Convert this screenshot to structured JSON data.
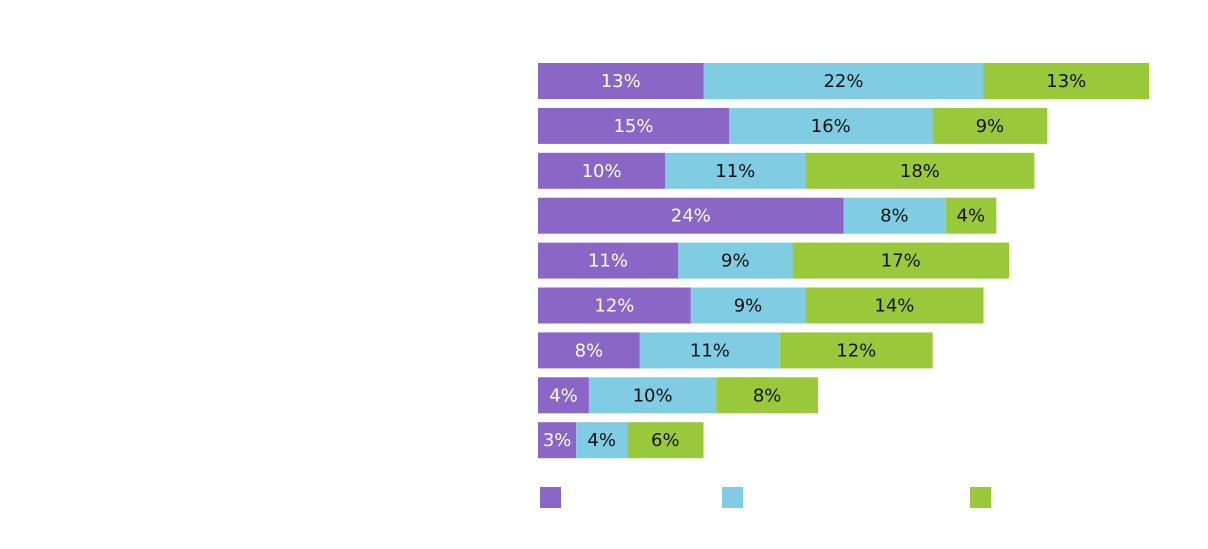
{
  "chart_data": {
    "type": "bar",
    "orientation": "horizontal",
    "stacked": true,
    "title": "",
    "xlabel": "",
    "ylabel": "",
    "categories": [
      "",
      "",
      "",
      "",
      "",
      "",
      "",
      "",
      ""
    ],
    "xlim": [
      0,
      48
    ],
    "legend_position": "bottom",
    "grid": false,
    "series": [
      {
        "name": "",
        "color": "#8a67c7",
        "label_color": "#ffffff",
        "values": [
          13,
          15,
          10,
          24,
          11,
          12,
          8,
          4,
          3
        ],
        "labels": [
          "13%",
          "15%",
          "10%",
          "24%",
          "11%",
          "12%",
          "8%",
          "4%",
          "3%"
        ]
      },
      {
        "name": "",
        "color": "#7fcce3",
        "label_color": "#111111",
        "values": [
          22,
          16,
          11,
          8,
          9,
          9,
          11,
          10,
          4
        ],
        "labels": [
          "22%",
          "16%",
          "11%",
          "8%",
          "9%",
          "9%",
          "11%",
          "10%",
          "4%"
        ]
      },
      {
        "name": "",
        "color": "#99c93b",
        "label_color": "#111111",
        "values": [
          13,
          9,
          18,
          4,
          17,
          14,
          12,
          8,
          6
        ],
        "labels": [
          "13%",
          "9%",
          "18%",
          "4%",
          "17%",
          "14%",
          "12%",
          "8%",
          "6%"
        ]
      }
    ]
  }
}
